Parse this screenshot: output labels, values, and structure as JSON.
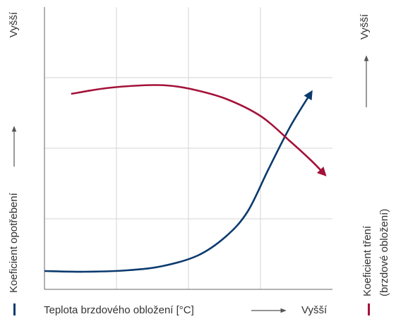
{
  "chart_data": {
    "type": "line",
    "y_label": "Koeficient opotřebení",
    "y_high": "Vyšší",
    "y2_label": "Koeficient tření",
    "y2_label_sub": "(brzdové obložení)",
    "y2_high": "Vyšší",
    "x_label": "Teplota brzdového obložení  [°C]",
    "x_high": "Vyšší",
    "xlim": [
      0,
      4
    ],
    "ylim": [
      0,
      4
    ],
    "xgrid": [
      1,
      2,
      3
    ],
    "ygrid": [
      1,
      2,
      3
    ],
    "series": [
      {
        "color": "#0b3a6f",
        "x": [
          0,
          0.56,
          1.15,
          1.64,
          2.13,
          2.52,
          2.82,
          3.11,
          3.41,
          3.71
        ],
        "values": [
          0.26,
          0.25,
          0.27,
          0.33,
          0.48,
          0.75,
          1.1,
          1.7,
          2.3,
          2.8
        ]
      },
      {
        "color": "#a3123a",
        "x": [
          0.37,
          0.85,
          1.35,
          1.69,
          2.03,
          2.52,
          3.01,
          3.41,
          3.71,
          3.9
        ],
        "values": [
          2.77,
          2.85,
          2.89,
          2.89,
          2.84,
          2.7,
          2.45,
          2.1,
          1.82,
          1.62
        ]
      }
    ]
  }
}
